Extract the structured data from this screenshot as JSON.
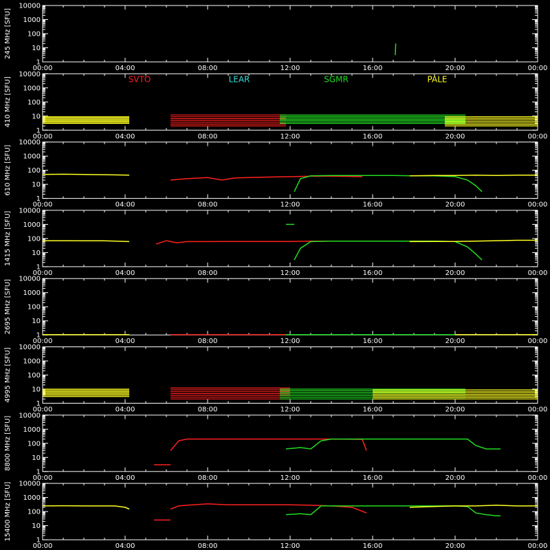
{
  "chart_data": {
    "type": "line",
    "x_tick_labels": [
      "00:00",
      "04:00",
      "08:00",
      "12:00",
      "16:00",
      "20:00",
      "00:00"
    ],
    "y_tick_labels": [
      "1",
      "10",
      "100",
      "1000",
      "10000"
    ],
    "y_scale": "log",
    "ylim": [
      1,
      10000
    ],
    "xlim_hours": [
      0,
      24
    ],
    "legend": [
      {
        "name": "SVTO",
        "color": "#ff2020"
      },
      {
        "name": "LEAR",
        "color": "#33dddd"
      },
      {
        "name": "SGMR",
        "color": "#22dd22"
      },
      {
        "name": "PALE",
        "color": "#ffff22"
      }
    ],
    "panels": [
      {
        "ylabel": "245 MHz [SFU]",
        "series": [
          {
            "station": "SGMR",
            "x": [
              17.1,
              17.12
            ],
            "y": [
              3,
              20
            ]
          }
        ]
      },
      {
        "ylabel": "410 MHz [SFU]",
        "band": true,
        "series": [
          {
            "station": "PALE",
            "x": [
              0,
              4.2
            ],
            "y": [
              3,
              9
            ]
          },
          {
            "station": "SVTO",
            "x": [
              6.2,
              11.8
            ],
            "y": [
              2,
              12
            ]
          },
          {
            "station": "SGMR",
            "x": [
              11.5,
              20.5
            ],
            "y": [
              3,
              12
            ]
          },
          {
            "station": "PALE",
            "x": [
              19.5,
              24
            ],
            "y": [
              2,
              9
            ]
          }
        ]
      },
      {
        "ylabel": "610 MHz [SFU]",
        "series": [
          {
            "station": "PALE",
            "x": [
              0,
              1,
              2,
              3,
              4.2
            ],
            "y": [
              50,
              52,
              50,
              48,
              45
            ]
          },
          {
            "station": "SVTO",
            "x": [
              6.2,
              7,
              8,
              8.7,
              9.3,
              10,
              11,
              12.2,
              13,
              14,
              15.5
            ],
            "y": [
              20,
              25,
              30,
              20,
              28,
              30,
              33,
              35,
              38,
              38,
              35
            ]
          },
          {
            "station": "SGMR",
            "x": [
              12.2,
              12.5,
              13,
              14,
              15,
              16,
              17,
              18,
              19,
              20,
              20.6,
              21,
              21.3
            ],
            "y": [
              3,
              25,
              40,
              42,
              42,
              42,
              42,
              40,
              40,
              35,
              20,
              8,
              3
            ]
          },
          {
            "station": "PALE",
            "x": [
              17.8,
              19,
              20,
              21,
              22,
              23,
              24
            ],
            "y": [
              40,
              42,
              42,
              45,
              42,
              45,
              45
            ]
          }
        ]
      },
      {
        "ylabel": "1415 MHz [SFU]",
        "series": [
          {
            "station": "PALE",
            "x": [
              0,
              1,
              2,
              3,
              4.2
            ],
            "y": [
              70,
              70,
              68,
              68,
              60
            ]
          },
          {
            "station": "SVTO",
            "x": [
              5.5,
              6,
              6.5,
              7,
              8,
              9,
              10,
              11,
              12,
              13,
              14,
              15.5
            ],
            "y": [
              40,
              70,
              50,
              60,
              60,
              62,
              62,
              62,
              62,
              65,
              65,
              65
            ]
          },
          {
            "station": "SGMR",
            "x": [
              11.8,
              12.2
            ],
            "y": [
              1000,
              1000
            ]
          },
          {
            "station": "SGMR",
            "x": [
              12.2,
              12.5,
              13,
              14,
              15,
              16,
              17,
              18,
              19,
              20,
              20.6,
              21,
              21.3
            ],
            "y": [
              3,
              20,
              60,
              65,
              65,
              65,
              65,
              65,
              65,
              60,
              25,
              8,
              3
            ]
          },
          {
            "station": "PALE",
            "x": [
              17.8,
              19,
              20,
              21,
              22,
              23,
              24
            ],
            "y": [
              60,
              62,
              62,
              65,
              70,
              75,
              75
            ]
          }
        ]
      },
      {
        "ylabel": "2695 MHz [SFU]",
        "series": [
          {
            "station": "PALE",
            "x": [
              0,
              4.2
            ],
            "y": [
              1.05,
              1.05
            ]
          },
          {
            "station": "SVTO",
            "x": [
              6.2,
              11.8
            ],
            "y": [
              1.05,
              1.05
            ]
          },
          {
            "station": "SGMR",
            "x": [
              11.8,
              20.5
            ],
            "y": [
              1.05,
              1.05
            ]
          },
          {
            "station": "PALE",
            "x": [
              20,
              24
            ],
            "y": [
              1.05,
              1.05
            ]
          }
        ]
      },
      {
        "ylabel": "4995 MHz [SFU]",
        "band": true,
        "series": [
          {
            "station": "PALE",
            "x": [
              0,
              4.2
            ],
            "y": [
              3,
              10
            ]
          },
          {
            "station": "SVTO",
            "x": [
              6.2,
              12
            ],
            "y": [
              2,
              12
            ]
          },
          {
            "station": "SGMR",
            "x": [
              11.5,
              20.5
            ],
            "y": [
              2,
              10
            ]
          },
          {
            "station": "PALE",
            "x": [
              16,
              24
            ],
            "y": [
              2,
              9
            ]
          }
        ]
      },
      {
        "ylabel": "8800 MHz [SFU]",
        "series": [
          {
            "station": "SVTO",
            "x": [
              5.4,
              6.2
            ],
            "y": [
              3,
              3
            ]
          },
          {
            "station": "SVTO",
            "x": [
              6.2,
              6.6,
              7,
              8,
              10,
              12,
              14,
              15.5,
              15.7
            ],
            "y": [
              30,
              150,
              200,
              200,
              200,
              200,
              200,
              190,
              30
            ]
          },
          {
            "station": "SGMR",
            "x": [
              11.8,
              12.5,
              13,
              13.5,
              14,
              16,
              18,
              19,
              20,
              20.6,
              21,
              21.5,
              22,
              22.2
            ],
            "y": [
              40,
              50,
              40,
              150,
              200,
              200,
              200,
              200,
              200,
              200,
              70,
              40,
              40,
              40
            ]
          }
        ]
      },
      {
        "ylabel": "15400 MHz [SFU]",
        "series": [
          {
            "station": "PALE",
            "x": [
              0,
              1,
              2,
              3,
              3.5,
              4,
              4.2
            ],
            "y": [
              250,
              260,
              250,
              250,
              250,
              200,
              150
            ]
          },
          {
            "station": "SVTO",
            "x": [
              5.4,
              6,
              6.2
            ],
            "y": [
              25,
              25,
              25
            ]
          },
          {
            "station": "SVTO",
            "x": [
              6.2,
              6.6,
              7,
              8,
              9,
              10,
              11,
              12,
              13,
              14,
              15,
              15.7
            ],
            "y": [
              150,
              250,
              280,
              350,
              300,
              300,
              300,
              300,
              280,
              250,
              200,
              80
            ]
          },
          {
            "station": "SGMR",
            "x": [
              11.8,
              12.5,
              13,
              13.5,
              14,
              16,
              18,
              19,
              20,
              20.6,
              21,
              21.5,
              22,
              22.2
            ],
            "y": [
              60,
              70,
              60,
              250,
              250,
              250,
              250,
              250,
              250,
              230,
              80,
              60,
              50,
              50
            ]
          },
          {
            "station": "PALE",
            "x": [
              17.8,
              19,
              20,
              21,
              22,
              23,
              24
            ],
            "y": [
              200,
              230,
              250,
              250,
              280,
              250,
              250
            ]
          }
        ]
      }
    ]
  }
}
